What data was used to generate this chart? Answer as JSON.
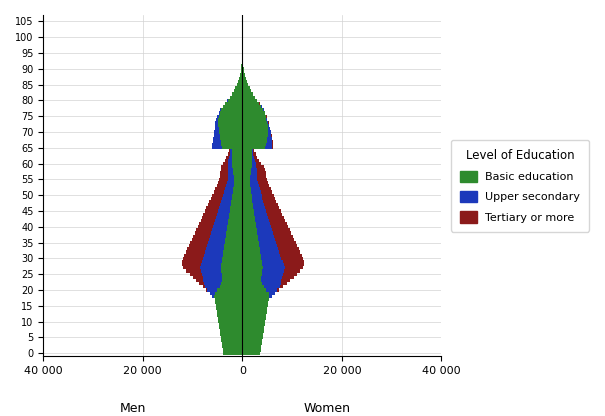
{
  "colors": {
    "basic": "#2e8b2e",
    "upper": "#1c39bb",
    "tertiary": "#8b1a1a"
  },
  "ages": [
    0,
    1,
    2,
    3,
    4,
    5,
    6,
    7,
    8,
    9,
    10,
    11,
    12,
    13,
    14,
    15,
    16,
    17,
    18,
    19,
    20,
    21,
    22,
    23,
    24,
    25,
    26,
    27,
    28,
    29,
    30,
    31,
    32,
    33,
    34,
    35,
    36,
    37,
    38,
    39,
    40,
    41,
    42,
    43,
    44,
    45,
    46,
    47,
    48,
    49,
    50,
    51,
    52,
    53,
    54,
    55,
    56,
    57,
    58,
    59,
    60,
    61,
    62,
    63,
    64,
    65,
    66,
    67,
    68,
    69,
    70,
    71,
    72,
    73,
    74,
    75,
    76,
    77,
    78,
    79,
    80,
    81,
    82,
    83,
    84,
    85,
    86,
    87,
    88,
    89,
    90,
    91,
    92,
    93,
    94,
    95,
    96,
    97,
    98,
    99,
    100,
    101,
    102,
    103,
    104,
    105
  ],
  "men_basic": [
    3800,
    3900,
    4000,
    4100,
    4200,
    4300,
    4400,
    4500,
    4600,
    4700,
    4800,
    4900,
    5000,
    5100,
    5200,
    5300,
    5400,
    5500,
    5600,
    5500,
    5000,
    4500,
    4200,
    4000,
    4000,
    4100,
    4200,
    4300,
    4200,
    4100,
    4000,
    3900,
    3800,
    3700,
    3600,
    3500,
    3400,
    3300,
    3200,
    3100,
    3000,
    2900,
    2800,
    2700,
    2600,
    2500,
    2400,
    2300,
    2200,
    2100,
    2000,
    1900,
    1800,
    1700,
    1600,
    1600,
    1700,
    1800,
    1900,
    2000,
    2100,
    2100,
    2100,
    2000,
    2000,
    4000,
    4200,
    4300,
    4400,
    4500,
    4600,
    4700,
    4800,
    4900,
    4800,
    4700,
    4500,
    4200,
    3800,
    3400,
    2900,
    2500,
    2100,
    1700,
    1400,
    1100,
    850,
    650,
    500,
    350,
    250,
    170,
    110,
    70,
    40,
    20,
    10,
    5,
    2,
    1,
    0,
    0,
    0,
    0,
    0,
    0
  ],
  "men_upper": [
    0,
    0,
    0,
    0,
    0,
    0,
    0,
    0,
    0,
    0,
    0,
    0,
    0,
    0,
    0,
    0,
    0,
    0,
    500,
    1000,
    2000,
    3000,
    3500,
    3800,
    4000,
    4000,
    4100,
    4200,
    4100,
    4000,
    3800,
    3700,
    3600,
    3500,
    3400,
    3300,
    3200,
    3100,
    3000,
    2900,
    2800,
    2700,
    2600,
    2500,
    2400,
    2300,
    2200,
    2100,
    2000,
    1900,
    1800,
    1700,
    1600,
    1500,
    1400,
    1300,
    1200,
    1100,
    1000,
    900,
    800,
    700,
    600,
    500,
    400,
    2000,
    1800,
    1600,
    1400,
    1200,
    1000,
    800,
    600,
    500,
    400,
    300,
    250,
    200,
    150,
    120,
    90,
    70,
    50,
    35,
    25,
    15,
    10,
    6,
    4,
    2,
    1,
    1,
    0,
    0,
    0,
    0,
    0,
    0,
    0,
    0,
    0,
    0,
    0,
    0,
    0
  ],
  "men_tertiary": [
    0,
    0,
    0,
    0,
    0,
    0,
    0,
    0,
    0,
    0,
    0,
    0,
    0,
    0,
    0,
    0,
    0,
    0,
    0,
    0,
    200,
    500,
    1000,
    1500,
    2000,
    2500,
    3000,
    3500,
    3800,
    4000,
    4200,
    4100,
    4000,
    3900,
    3800,
    3700,
    3600,
    3500,
    3400,
    3300,
    3200,
    3100,
    3000,
    2900,
    2800,
    2700,
    2600,
    2500,
    2400,
    2300,
    2200,
    2100,
    2000,
    1900,
    1800,
    1700,
    1600,
    1500,
    1400,
    1300,
    1000,
    700,
    500,
    350,
    250,
    100,
    90,
    80,
    70,
    60,
    50,
    35,
    25,
    20,
    15,
    10,
    8,
    6,
    4,
    3,
    2,
    1,
    1,
    0,
    0,
    0,
    0,
    0,
    0,
    0,
    0,
    0,
    0,
    0,
    0,
    0,
    0,
    0,
    0,
    0,
    0,
    0,
    0,
    0,
    0
  ],
  "women_basic": [
    3600,
    3700,
    3800,
    3900,
    4000,
    4100,
    4200,
    4300,
    4400,
    4500,
    4600,
    4700,
    4800,
    4900,
    5000,
    5100,
    5200,
    5300,
    5400,
    5300,
    4800,
    4300,
    4000,
    3800,
    3800,
    3900,
    4000,
    4100,
    4000,
    3900,
    3800,
    3700,
    3600,
    3500,
    3400,
    3300,
    3200,
    3100,
    3000,
    2900,
    2800,
    2700,
    2600,
    2500,
    2400,
    2300,
    2200,
    2100,
    2000,
    1900,
    1900,
    1800,
    1700,
    1600,
    1500,
    1500,
    1600,
    1700,
    1800,
    1900,
    2000,
    2000,
    2000,
    1900,
    1900,
    4500,
    4700,
    4900,
    5000,
    5100,
    5200,
    5200,
    5100,
    5000,
    4800,
    4700,
    4500,
    4200,
    3800,
    3400,
    3000,
    2600,
    2200,
    1800,
    1500,
    1200,
    950,
    750,
    580,
    420,
    300,
    210,
    140,
    90,
    55,
    30,
    15,
    8,
    4,
    2,
    0,
    0,
    0,
    0,
    0,
    0
  ],
  "women_upper": [
    0,
    0,
    0,
    0,
    0,
    0,
    0,
    0,
    0,
    0,
    0,
    0,
    0,
    0,
    0,
    0,
    0,
    0,
    600,
    1200,
    2200,
    3200,
    3700,
    4000,
    4200,
    4200,
    4300,
    4400,
    4300,
    4200,
    4000,
    3900,
    3800,
    3700,
    3600,
    3500,
    3400,
    3300,
    3200,
    3100,
    3000,
    2900,
    2800,
    2700,
    2600,
    2500,
    2400,
    2300,
    2200,
    2100,
    2000,
    1900,
    1800,
    1700,
    1600,
    1500,
    1400,
    1300,
    1100,
    900,
    700,
    500,
    400,
    300,
    200,
    1500,
    1300,
    1100,
    900,
    700,
    500,
    400,
    300,
    250,
    200,
    150,
    120,
    90,
    70,
    50,
    40,
    30,
    20,
    14,
    10,
    6,
    4,
    2,
    1,
    1,
    0,
    0,
    0,
    0,
    0,
    0,
    0,
    0,
    0,
    0,
    0,
    0,
    0,
    0,
    0,
    0,
    0
  ],
  "women_tertiary": [
    0,
    0,
    0,
    0,
    0,
    0,
    0,
    0,
    0,
    0,
    0,
    0,
    0,
    0,
    0,
    0,
    0,
    0,
    0,
    0,
    300,
    700,
    1200,
    1800,
    2300,
    2800,
    3200,
    3700,
    4000,
    4200,
    4400,
    4300,
    4200,
    4100,
    4000,
    3900,
    3800,
    3700,
    3600,
    3500,
    3400,
    3300,
    3200,
    3100,
    3000,
    2900,
    2800,
    2700,
    2600,
    2500,
    2400,
    2300,
    2200,
    2100,
    2000,
    1900,
    1800,
    1700,
    1600,
    1500,
    1100,
    800,
    600,
    450,
    300,
    120,
    100,
    90,
    80,
    65,
    50,
    38,
    28,
    22,
    17,
    12,
    9,
    7,
    5,
    3,
    2,
    1,
    1,
    0,
    0,
    0,
    0,
    0,
    0,
    0,
    0,
    0,
    0,
    0,
    0,
    0,
    0,
    0,
    0,
    0,
    0,
    0,
    0,
    0
  ]
}
